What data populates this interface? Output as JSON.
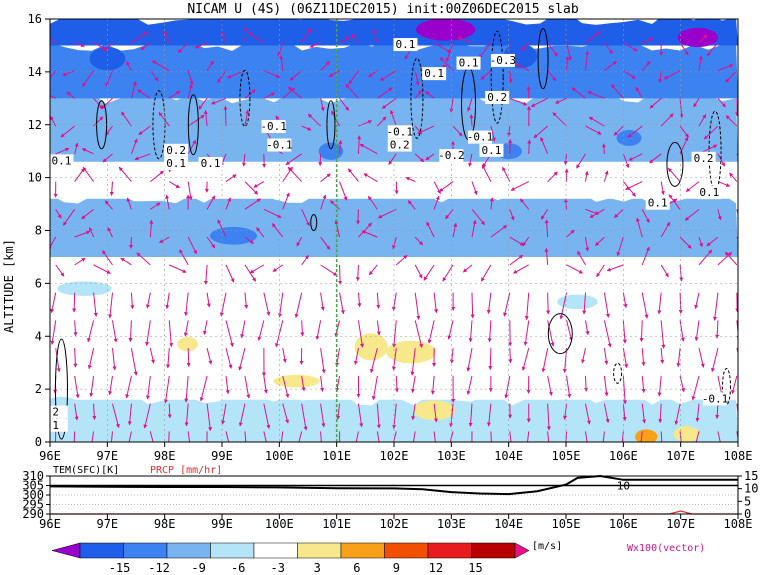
{
  "chart_data": {
    "type": "heatmap",
    "title": "NICAM U (4S) (06Z11DEC2015) init:00Z06DEC2015 slab",
    "ylabel": "ALTITUDE [km]",
    "xlabel": "",
    "x_ticks": [
      "96E",
      "97E",
      "98E",
      "99E",
      "100E",
      "101E",
      "102E",
      "103E",
      "104E",
      "105E",
      "106E",
      "107E",
      "108E"
    ],
    "y_ticks": [
      "0",
      "2",
      "4",
      "6",
      "8",
      "10",
      "12",
      "14",
      "16"
    ],
    "xlim": [
      96,
      108
    ],
    "ylim": [
      0,
      16
    ],
    "marker_line_lon": 101.0,
    "contour_labels": [
      {
        "text": "0.1",
        "lon": 96.2,
        "alt": 10.5
      },
      {
        "text": "0.2",
        "lon": 98.2,
        "alt": 10.9
      },
      {
        "text": "0.1",
        "lon": 98.2,
        "alt": 10.4
      },
      {
        "text": "0.1",
        "lon": 98.8,
        "alt": 10.4
      },
      {
        "text": "-0.1",
        "lon": 99.9,
        "alt": 11.8
      },
      {
        "text": "-0.1",
        "lon": 100.0,
        "alt": 11.1
      },
      {
        "text": "0.1",
        "lon": 102.2,
        "alt": 14.9
      },
      {
        "text": "0.1",
        "lon": 102.7,
        "alt": 13.8
      },
      {
        "text": "0.1",
        "lon": 103.3,
        "alt": 14.2
      },
      {
        "text": "-0.3",
        "lon": 103.9,
        "alt": 14.3
      },
      {
        "text": "0.2",
        "lon": 103.8,
        "alt": 12.9
      },
      {
        "text": "-0.1",
        "lon": 102.1,
        "alt": 11.6
      },
      {
        "text": "0.2",
        "lon": 102.1,
        "alt": 11.1
      },
      {
        "text": "-0.2",
        "lon": 103.0,
        "alt": 10.7
      },
      {
        "text": "-0.1",
        "lon": 103.5,
        "alt": 11.4
      },
      {
        "text": "0.1",
        "lon": 103.7,
        "alt": 10.9
      },
      {
        "text": "0.2",
        "lon": 107.4,
        "alt": 10.6
      },
      {
        "text": "0.1",
        "lon": 106.6,
        "alt": 8.9
      },
      {
        "text": "0.1",
        "lon": 107.5,
        "alt": 9.3
      },
      {
        "text": "-0.1",
        "lon": 107.6,
        "alt": 1.5
      },
      {
        "text": "2",
        "lon": 96.1,
        "alt": 1.0
      },
      {
        "text": "1",
        "lon": 96.1,
        "alt": 0.5
      }
    ],
    "u_field_bands": [
      {
        "alt_from": 0.0,
        "alt_to": 1.6,
        "u": -3,
        "note": "patchy"
      },
      {
        "alt_from": 1.6,
        "alt_to": 7.0,
        "u": 0
      },
      {
        "alt_from": 7.0,
        "alt_to": 9.2,
        "u": -6
      },
      {
        "alt_from": 9.2,
        "alt_to": 10.6,
        "u": 0
      },
      {
        "alt_from": 10.6,
        "alt_to": 13.0,
        "u": -6
      },
      {
        "alt_from": 13.0,
        "alt_to": 15.0,
        "u": -9
      },
      {
        "alt_from": 15.0,
        "alt_to": 16.0,
        "u": -12
      }
    ],
    "bottom_panel": {
      "labels": {
        "tem": "TEM(SFC)[K]",
        "prcp": "PRCP [mm/hr]"
      },
      "left_ticks": [
        "310",
        "305",
        "300",
        "295",
        "290"
      ],
      "right_ticks": [
        "15",
        "10",
        "5",
        "0"
      ],
      "tem_series": {
        "lon": [
          96,
          97,
          98,
          99,
          100,
          101,
          102,
          102.5,
          103,
          103.5,
          104,
          104.5,
          105,
          105.2,
          105.6,
          106,
          107,
          108
        ],
        "values": [
          304.5,
          304.3,
          304.2,
          304.2,
          304.0,
          303.6,
          303.5,
          303.0,
          301.5,
          300.8,
          300.5,
          302.0,
          305.5,
          309.0,
          311.0,
          308.0,
          308.0,
          308.0
        ]
      },
      "prcp_series": {
        "lon": [
          96,
          106.8,
          107.0,
          107.2,
          108
        ],
        "values": [
          0,
          0,
          1.2,
          0,
          0
        ]
      },
      "contour_label": "10"
    },
    "colorbar": {
      "ticks": [
        "-15",
        "-12",
        "-9",
        "-6",
        "-3",
        "3",
        "6",
        "9",
        "12",
        "15"
      ],
      "units": "[m/s]",
      "colors": [
        "#9a00cc",
        "#1e5ee8",
        "#3c82f0",
        "#78b4f0",
        "#b4e4f8",
        "#ffffff",
        "#f8e88c",
        "#f8a018",
        "#f05000",
        "#e81c1c",
        "#b80000",
        "#e8108c"
      ]
    },
    "vector_label": "Wx100(vector)"
  }
}
